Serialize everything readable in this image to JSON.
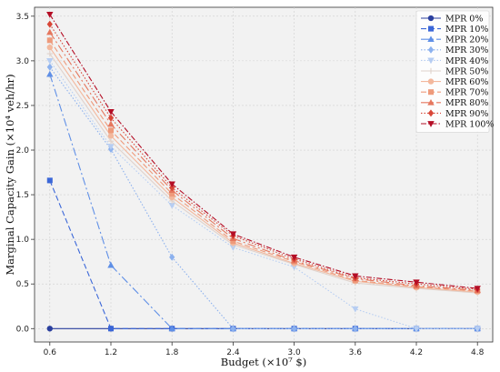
{
  "chart_data": {
    "type": "line",
    "xlabel": "Budget (×10⁷ $)",
    "ylabel": "Marginal Capacity Gain (×10⁴ veh/hr)",
    "x": [
      0.6,
      1.2,
      1.8,
      2.4,
      3.0,
      3.6,
      4.2,
      4.8
    ],
    "x_tick_labels": [
      "0.6",
      "1.2",
      "1.8",
      "2.4",
      "3.0",
      "3.6",
      "4.2",
      "4.8"
    ],
    "xlim": [
      0.45,
      4.95
    ],
    "ylim": [
      -0.15,
      3.6
    ],
    "y_ticks": [
      0.0,
      0.5,
      1.0,
      1.5,
      2.0,
      2.5,
      3.0,
      3.5
    ],
    "y_tick_labels": [
      "0.0",
      "0.5",
      "1.0",
      "1.5",
      "2.0",
      "2.5",
      "3.0",
      "3.5"
    ],
    "grid": true,
    "legend_position": "top-right",
    "series": [
      {
        "name": "MPR 0%",
        "color": "#2a3f9e",
        "marker": "circle",
        "dash": "",
        "values": [
          0.0,
          0.0,
          0.0,
          0.0,
          0.0,
          0.0,
          0.0,
          0.0
        ]
      },
      {
        "name": "MPR 10%",
        "color": "#3b67d8",
        "marker": "square",
        "dash": "6,3",
        "values": [
          1.66,
          0.0,
          0.0,
          0.0,
          0.0,
          0.0,
          0.0,
          0.0
        ]
      },
      {
        "name": "MPR 20%",
        "color": "#5f8fe6",
        "marker": "triangle-up",
        "dash": "9,3,2,3",
        "values": [
          2.85,
          0.71,
          0.0,
          0.0,
          0.0,
          0.0,
          0.0,
          0.0
        ]
      },
      {
        "name": "MPR 30%",
        "color": "#8cb1ee",
        "marker": "diamond",
        "dash": "1.5,2",
        "values": [
          2.93,
          2.01,
          0.8,
          0.0,
          0.0,
          0.0,
          0.0,
          0.0
        ]
      },
      {
        "name": "MPR 40%",
        "color": "#b6cdf2",
        "marker": "triangle-down",
        "dash": "1.5,2",
        "values": [
          3.0,
          2.04,
          1.38,
          0.91,
          0.69,
          0.22,
          0.0,
          0.0
        ]
      },
      {
        "name": "MPR 50%",
        "color": "#e0d2cc",
        "marker": "plus",
        "dash": "",
        "values": [
          3.08,
          2.1,
          1.43,
          0.94,
          0.72,
          0.51,
          0.45,
          0.4
        ]
      },
      {
        "name": "MPR 60%",
        "color": "#f3b89d",
        "marker": "circle",
        "dash": "",
        "values": [
          3.15,
          2.16,
          1.47,
          0.96,
          0.73,
          0.53,
          0.46,
          0.41
        ]
      },
      {
        "name": "MPR 70%",
        "color": "#ee9a7b",
        "marker": "square",
        "dash": "6,3",
        "values": [
          3.23,
          2.22,
          1.51,
          0.98,
          0.75,
          0.54,
          0.47,
          0.42
        ]
      },
      {
        "name": "MPR 80%",
        "color": "#e5775e",
        "marker": "triangle-up",
        "dash": "9,3,2,3",
        "values": [
          3.32,
          2.29,
          1.55,
          1.01,
          0.76,
          0.56,
          0.48,
          0.43
        ]
      },
      {
        "name": "MPR 90%",
        "color": "#d84637",
        "marker": "diamond",
        "dash": "1.5,2",
        "values": [
          3.41,
          2.36,
          1.58,
          1.04,
          0.78,
          0.57,
          0.5,
          0.44
        ]
      },
      {
        "name": "MPR 100%",
        "color": "#b40d25",
        "marker": "triangle-down",
        "dash": "6,2,1.5,2",
        "values": [
          3.52,
          2.43,
          1.62,
          1.06,
          0.8,
          0.59,
          0.52,
          0.45
        ]
      }
    ]
  }
}
